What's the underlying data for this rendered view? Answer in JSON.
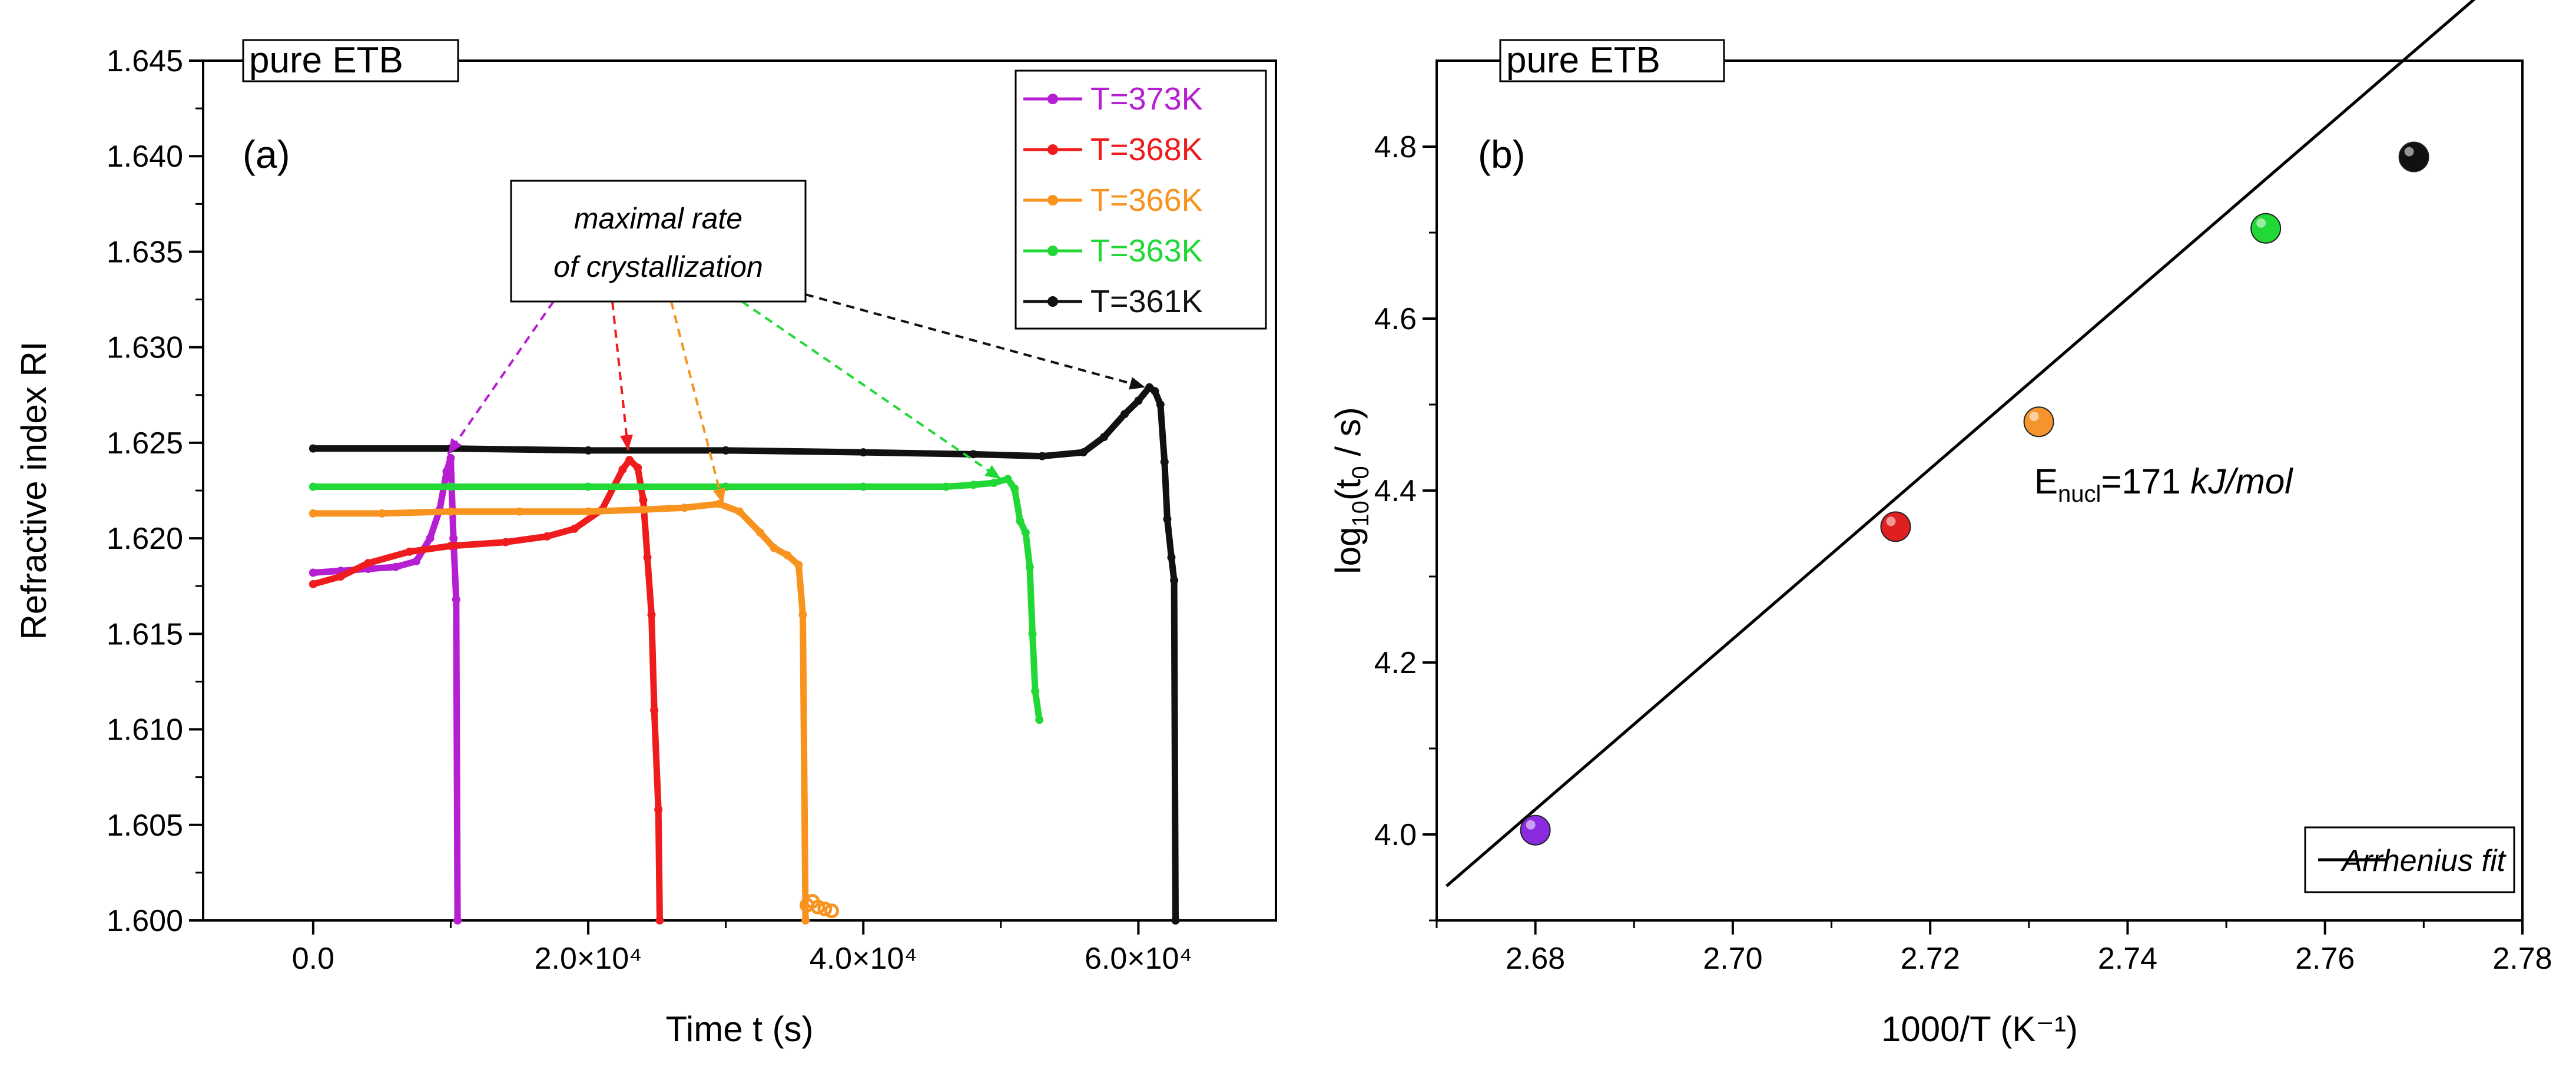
{
  "chart_data": [
    {
      "type": "line",
      "panel_label": "(a)",
      "sample_label": "pure ETB",
      "xlabel": "Time t (s)",
      "ylabel": "Refractive index RI",
      "xlim": [
        -8000,
        70000
      ],
      "ylim": [
        1.6,
        1.645
      ],
      "xticks": [
        {
          "value": 0,
          "label": "0.0"
        },
        {
          "value": 20000,
          "label": "2.0×10⁴"
        },
        {
          "value": 40000,
          "label": "4.0×10⁴"
        },
        {
          "value": 60000,
          "label": "6.0×10⁴"
        }
      ],
      "yticks": [
        {
          "value": 1.6,
          "label": "1.600"
        },
        {
          "value": 1.605,
          "label": "1.605"
        },
        {
          "value": 1.61,
          "label": "1.610"
        },
        {
          "value": 1.615,
          "label": "1.615"
        },
        {
          "value": 1.62,
          "label": "1.620"
        },
        {
          "value": 1.625,
          "label": "1.625"
        },
        {
          "value": 1.63,
          "label": "1.630"
        },
        {
          "value": 1.635,
          "label": "1.635"
        },
        {
          "value": 1.64,
          "label": "1.640"
        },
        {
          "value": 1.645,
          "label": "1.645"
        }
      ],
      "annotation": {
        "lines": [
          "maximal rate",
          "of crystallization"
        ],
        "anchor": [
          11000,
          1.6366
        ],
        "arrows": [
          {
            "series": "T=373K",
            "to": [
              9800,
              1.6244
            ]
          },
          {
            "series": "T=368K",
            "to": [
              22900,
              1.6246
            ]
          },
          {
            "series": "T=366K",
            "to": [
              29800,
              1.6218
            ]
          },
          {
            "series": "T=363K",
            "to": [
              50000,
              1.6231
            ]
          },
          {
            "series": "T=361K",
            "to": [
              60500,
              1.6279
            ]
          }
        ]
      },
      "series": [
        {
          "name": "T=373K",
          "color": "#b61fd1",
          "points": [
            [
              0,
              1.6182
            ],
            [
              2000,
              1.6183
            ],
            [
              4000,
              1.6184
            ],
            [
              6000,
              1.6185
            ],
            [
              7500,
              1.6188
            ],
            [
              8500,
              1.62
            ],
            [
              9200,
              1.6215
            ],
            [
              9700,
              1.6235
            ],
            [
              10000,
              1.6242
            ],
            [
              10200,
              1.62
            ],
            [
              10400,
              1.6168
            ],
            [
              10500,
              1.6
            ]
          ]
        },
        {
          "name": "T=368K",
          "color": "#ee1c1c",
          "points": [
            [
              0,
              1.6176
            ],
            [
              2000,
              1.618
            ],
            [
              4000,
              1.6187
            ],
            [
              7000,
              1.6193
            ],
            [
              10000,
              1.6196
            ],
            [
              14000,
              1.6198
            ],
            [
              17000,
              1.6201
            ],
            [
              19000,
              1.6205
            ],
            [
              21000,
              1.6215
            ],
            [
              22500,
              1.6236
            ],
            [
              23000,
              1.6241
            ],
            [
              23600,
              1.6237
            ],
            [
              24000,
              1.622
            ],
            [
              24300,
              1.619
            ],
            [
              24600,
              1.616
            ],
            [
              24800,
              1.611
            ],
            [
              25100,
              1.6058
            ],
            [
              25200,
              1.6
            ]
          ]
        },
        {
          "name": "T=366K",
          "color": "#f7931e",
          "points": [
            [
              0,
              1.6213
            ],
            [
              5000,
              1.6213
            ],
            [
              10000,
              1.6214
            ],
            [
              15000,
              1.6214
            ],
            [
              20000,
              1.6214
            ],
            [
              24000,
              1.6215
            ],
            [
              27000,
              1.6216
            ],
            [
              29500,
              1.6218
            ],
            [
              31000,
              1.6214
            ],
            [
              32500,
              1.6203
            ],
            [
              33500,
              1.6195
            ],
            [
              34500,
              1.6191
            ],
            [
              35300,
              1.6186
            ],
            [
              35600,
              1.616
            ],
            [
              35800,
              1.6
            ]
          ],
          "cluster": [
            [
              35900,
              1.6008
            ],
            [
              36300,
              1.601
            ],
            [
              36700,
              1.6007
            ],
            [
              37200,
              1.6006
            ],
            [
              37700,
              1.6005
            ]
          ]
        },
        {
          "name": "T=363K",
          "color": "#22d836",
          "points": [
            [
              0,
              1.6227
            ],
            [
              10000,
              1.6227
            ],
            [
              20000,
              1.6227
            ],
            [
              30000,
              1.6227
            ],
            [
              40000,
              1.6227
            ],
            [
              46000,
              1.6227
            ],
            [
              48000,
              1.6228
            ],
            [
              49500,
              1.6229
            ],
            [
              50500,
              1.6231
            ],
            [
              51000,
              1.6226
            ],
            [
              51400,
              1.6209
            ],
            [
              51800,
              1.6203
            ],
            [
              52100,
              1.6185
            ],
            [
              52300,
              1.615
            ],
            [
              52500,
              1.612
            ],
            [
              52800,
              1.6105
            ]
          ]
        },
        {
          "name": "T=361K",
          "color": "#111111",
          "points": [
            [
              0,
              1.6247
            ],
            [
              10000,
              1.6247
            ],
            [
              20000,
              1.6246
            ],
            [
              30000,
              1.6246
            ],
            [
              40000,
              1.6245
            ],
            [
              48000,
              1.6244
            ],
            [
              53000,
              1.6243
            ],
            [
              56000,
              1.6245
            ],
            [
              57500,
              1.6253
            ],
            [
              59000,
              1.6265
            ],
            [
              60000,
              1.6272
            ],
            [
              60800,
              1.6279
            ],
            [
              61200,
              1.6277
            ],
            [
              61600,
              1.627
            ],
            [
              61900,
              1.624
            ],
            [
              62100,
              1.621
            ],
            [
              62400,
              1.619
            ],
            [
              62600,
              1.6178
            ],
            [
              62700,
              1.6
            ]
          ]
        }
      ]
    },
    {
      "type": "scatter",
      "panel_label": "(b)",
      "sample_label": "pure ETB",
      "xlabel": "1000/T (K⁻¹)",
      "ylabel_main": "log",
      "ylabel_sub1": "10",
      "ylabel_mid": "(t",
      "ylabel_sub2": "0",
      "ylabel_end": " / s)",
      "xlim": [
        2.67,
        2.78
      ],
      "ylim": [
        3.9,
        4.9
      ],
      "xticks": [
        {
          "value": 2.68,
          "label": "2.68"
        },
        {
          "value": 2.7,
          "label": "2.70"
        },
        {
          "value": 2.72,
          "label": "2.72"
        },
        {
          "value": 2.74,
          "label": "2.74"
        },
        {
          "value": 2.76,
          "label": "2.76"
        },
        {
          "value": 2.78,
          "label": "2.78"
        }
      ],
      "yticks": [
        {
          "value": 4.0,
          "label": "4.0"
        },
        {
          "value": 4.2,
          "label": "4.2"
        },
        {
          "value": 4.4,
          "label": "4.4"
        },
        {
          "value": 4.6,
          "label": "4.6"
        },
        {
          "value": 4.8,
          "label": "4.8"
        }
      ],
      "points": [
        {
          "x": 2.68,
          "y": 4.005,
          "color": "#8a2be2"
        },
        {
          "x": 2.7165,
          "y": 4.358,
          "color": "#e02020"
        },
        {
          "x": 2.731,
          "y": 4.48,
          "color": "#f5942c"
        },
        {
          "x": 2.754,
          "y": 4.705,
          "color": "#22d836"
        },
        {
          "x": 2.769,
          "y": 4.788,
          "color": "#111111"
        }
      ],
      "fit": {
        "name": "Arrhenius fit",
        "x": [
          2.671,
          2.7775
        ],
        "y": [
          3.94,
          4.995
        ]
      },
      "energy": {
        "prefix": "E",
        "sub": "nucl",
        "value": "=171 ",
        "unit": "kJ/mol"
      }
    }
  ]
}
